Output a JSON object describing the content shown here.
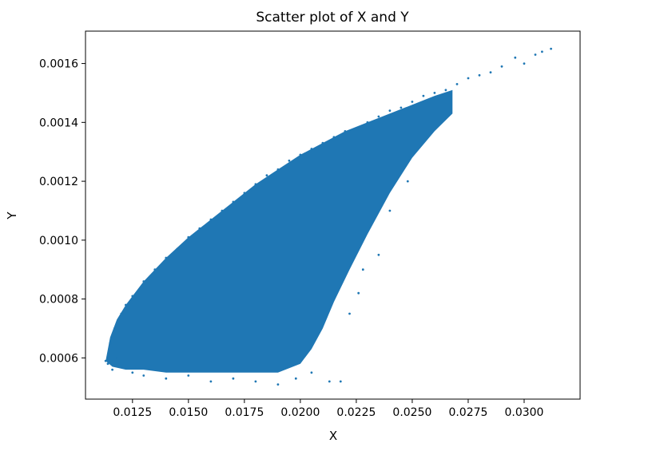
{
  "chart_data": {
    "type": "scatter",
    "title": "Scatter plot of X and Y",
    "xlabel": "X",
    "ylabel": "Y",
    "xlim": [
      0.0104,
      0.0325
    ],
    "ylim": [
      0.00046,
      0.00171
    ],
    "xticks": [
      "0.0125",
      "0.0150",
      "0.0175",
      "0.0200",
      "0.0225",
      "0.0250",
      "0.0275",
      "0.0300"
    ],
    "yticks": [
      "0.0006",
      "0.0008",
      "0.0010",
      "0.0012",
      "0.0014",
      "0.0016"
    ],
    "grid": false,
    "marker_color": "#1f77b4",
    "series": [
      {
        "x": [
          0.0113,
          0.0115,
          0.0117,
          0.012,
          0.0122,
          0.0125,
          0.013,
          0.0135,
          0.014,
          0.0145,
          0.015,
          0.0155,
          0.016,
          0.0165,
          0.017,
          0.0175,
          0.018,
          0.0185,
          0.019,
          0.0195,
          0.02,
          0.0205,
          0.021,
          0.0215,
          0.022,
          0.0225,
          0.023,
          0.0235,
          0.024,
          0.0245,
          0.025,
          0.0255,
          0.026,
          0.0265,
          0.027,
          0.0275,
          0.028,
          0.0285,
          0.029,
          0.0296,
          0.03,
          0.0305,
          0.0308,
          0.0312,
          0.0213,
          0.0218,
          0.0205,
          0.0198,
          0.019,
          0.018,
          0.017,
          0.016,
          0.015,
          0.014,
          0.013,
          0.0125,
          0.012,
          0.0118,
          0.0116,
          0.0114,
          0.0228,
          0.0235,
          0.024,
          0.0248,
          0.0226,
          0.0222
        ],
        "y": [
          0.00059,
          0.00065,
          0.0007,
          0.00075,
          0.00078,
          0.00081,
          0.00086,
          0.0009,
          0.00094,
          0.00097,
          0.00101,
          0.00104,
          0.00107,
          0.0011,
          0.00113,
          0.00116,
          0.00119,
          0.00122,
          0.00124,
          0.00127,
          0.00129,
          0.00131,
          0.00133,
          0.00135,
          0.00137,
          0.00138,
          0.0014,
          0.00142,
          0.00144,
          0.00145,
          0.00147,
          0.00149,
          0.0015,
          0.00151,
          0.00153,
          0.00155,
          0.00156,
          0.00157,
          0.00159,
          0.00162,
          0.0016,
          0.00163,
          0.00164,
          0.00165,
          0.00052,
          0.00052,
          0.00055,
          0.00053,
          0.00051,
          0.00052,
          0.00053,
          0.00052,
          0.00054,
          0.00053,
          0.00054,
          0.00055,
          0.00057,
          0.0006,
          0.00056,
          0.00058,
          0.0009,
          0.00095,
          0.0011,
          0.0012,
          0.00082,
          0.00075
        ]
      }
    ]
  }
}
